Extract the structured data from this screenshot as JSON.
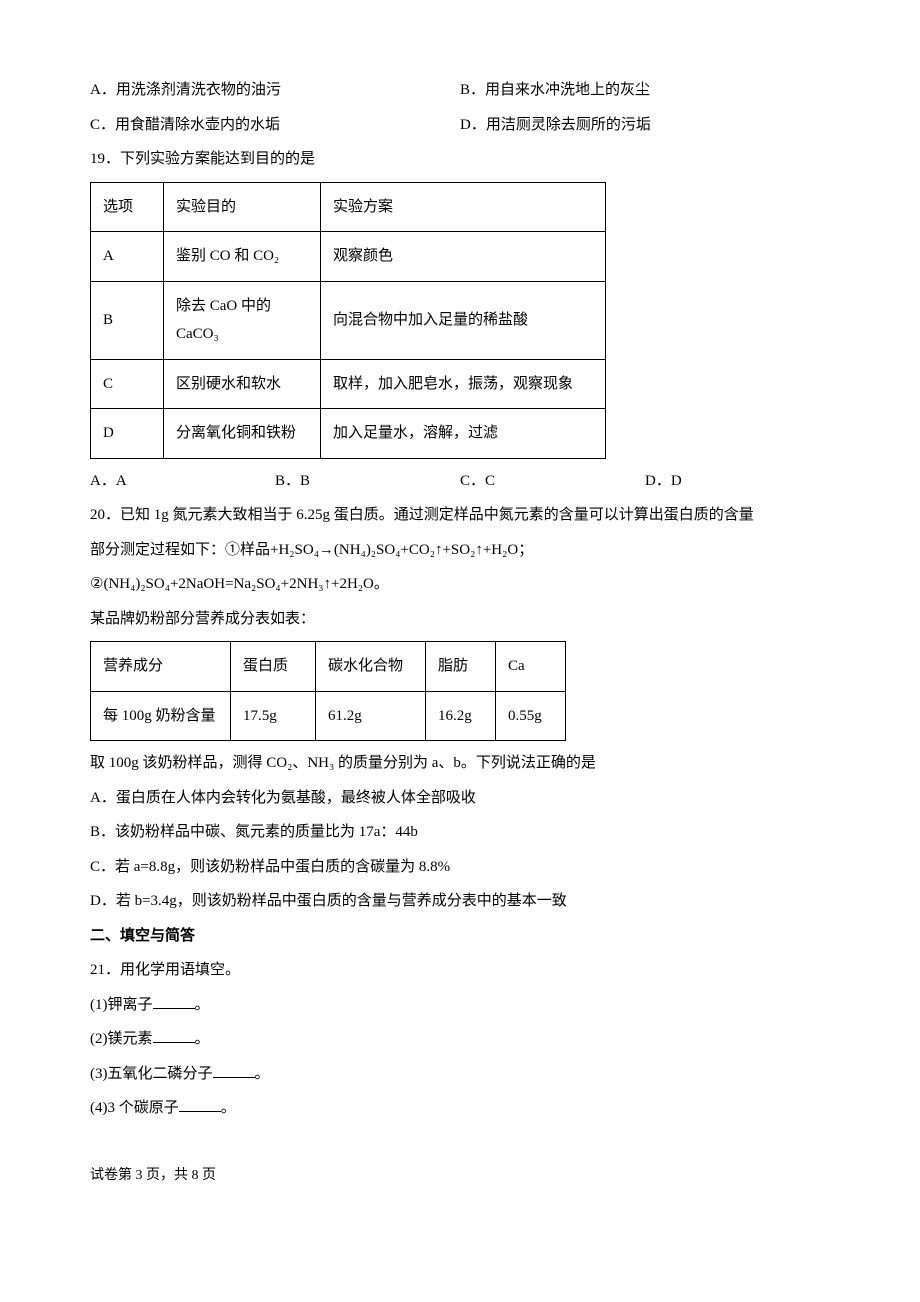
{
  "q18": {
    "optA": "A．用洗涤剂清洗衣物的油污",
    "optB": "B．用自来水冲洗地上的灰尘",
    "optC": "C．用食醋清除水壶内的水垢",
    "optD": "D．用洁厕灵除去厕所的污垢"
  },
  "q19": {
    "stem": "19．下列实验方案能达到目的的是",
    "table": {
      "header": [
        "选项",
        "实验目的",
        "实验方案"
      ],
      "rows": [
        [
          "A",
          "鉴别 CO 和 CO₂",
          "观察颜色"
        ],
        [
          "B",
          "除去 CaO 中的 CaCO₃",
          "向混合物中加入足量的稀盐酸"
        ],
        [
          "C",
          "区别硬水和软水",
          "取样，加入肥皂水，振荡，观察现象"
        ],
        [
          "D",
          "分离氧化铜和铁粉",
          "加入足量水，溶解，过滤"
        ]
      ]
    },
    "optA": "A．A",
    "optB": "B．B",
    "optC": "C．C",
    "optD": "D．D"
  },
  "q20": {
    "line1": "20．已知 1g 氮元素大致相当于 6.25g 蛋白质。通过测定样品中氮元素的含量可以计算出蛋白质的含量",
    "line2": "部分测定过程如下：①样品+H₂SO₄→(NH₄)₂SO₄+CO₂↑+SO₂↑+H₂O；",
    "line3": "②(NH₄)₂SO₄+2NaOH=Na₂SO₄+2NH₃↑+2H₂O。",
    "line4": "某品牌奶粉部分营养成分表如表：",
    "table": {
      "header": [
        "营养成分",
        "蛋白质",
        "碳水化合物",
        "脂肪",
        "Ca"
      ],
      "row": [
        "每 100g 奶粉含量",
        "17.5g",
        "61.2g",
        "16.2g",
        "0.55g"
      ]
    },
    "line5": "取 100g 该奶粉样品，测得 CO₂、NH₃ 的质量分别为 a、b。下列说法正确的是",
    "optA": "A．蛋白质在人体内会转化为氨基酸，最终被人体全部吸收",
    "optB": "B．该奶粉样品中碳、氮元素的质量比为 17a：44b",
    "optC": "C．若 a=8.8g，则该奶粉样品中蛋白质的含碳量为 8.8%",
    "optD": "D．若 b=3.4g，则该奶粉样品中蛋白质的含量与营养成分表中的基本一致"
  },
  "section2": "二、填空与简答",
  "q21": {
    "stem": "21．用化学用语填空。",
    "p1a": "(1)钾离子",
    "p2a": "(2)镁元素",
    "p3a": "(3)五氧化二磷分子",
    "p4a": "(4)3 个碳原子",
    "suffix": "。"
  },
  "footer": "试卷第 3 页，共 8 页"
}
